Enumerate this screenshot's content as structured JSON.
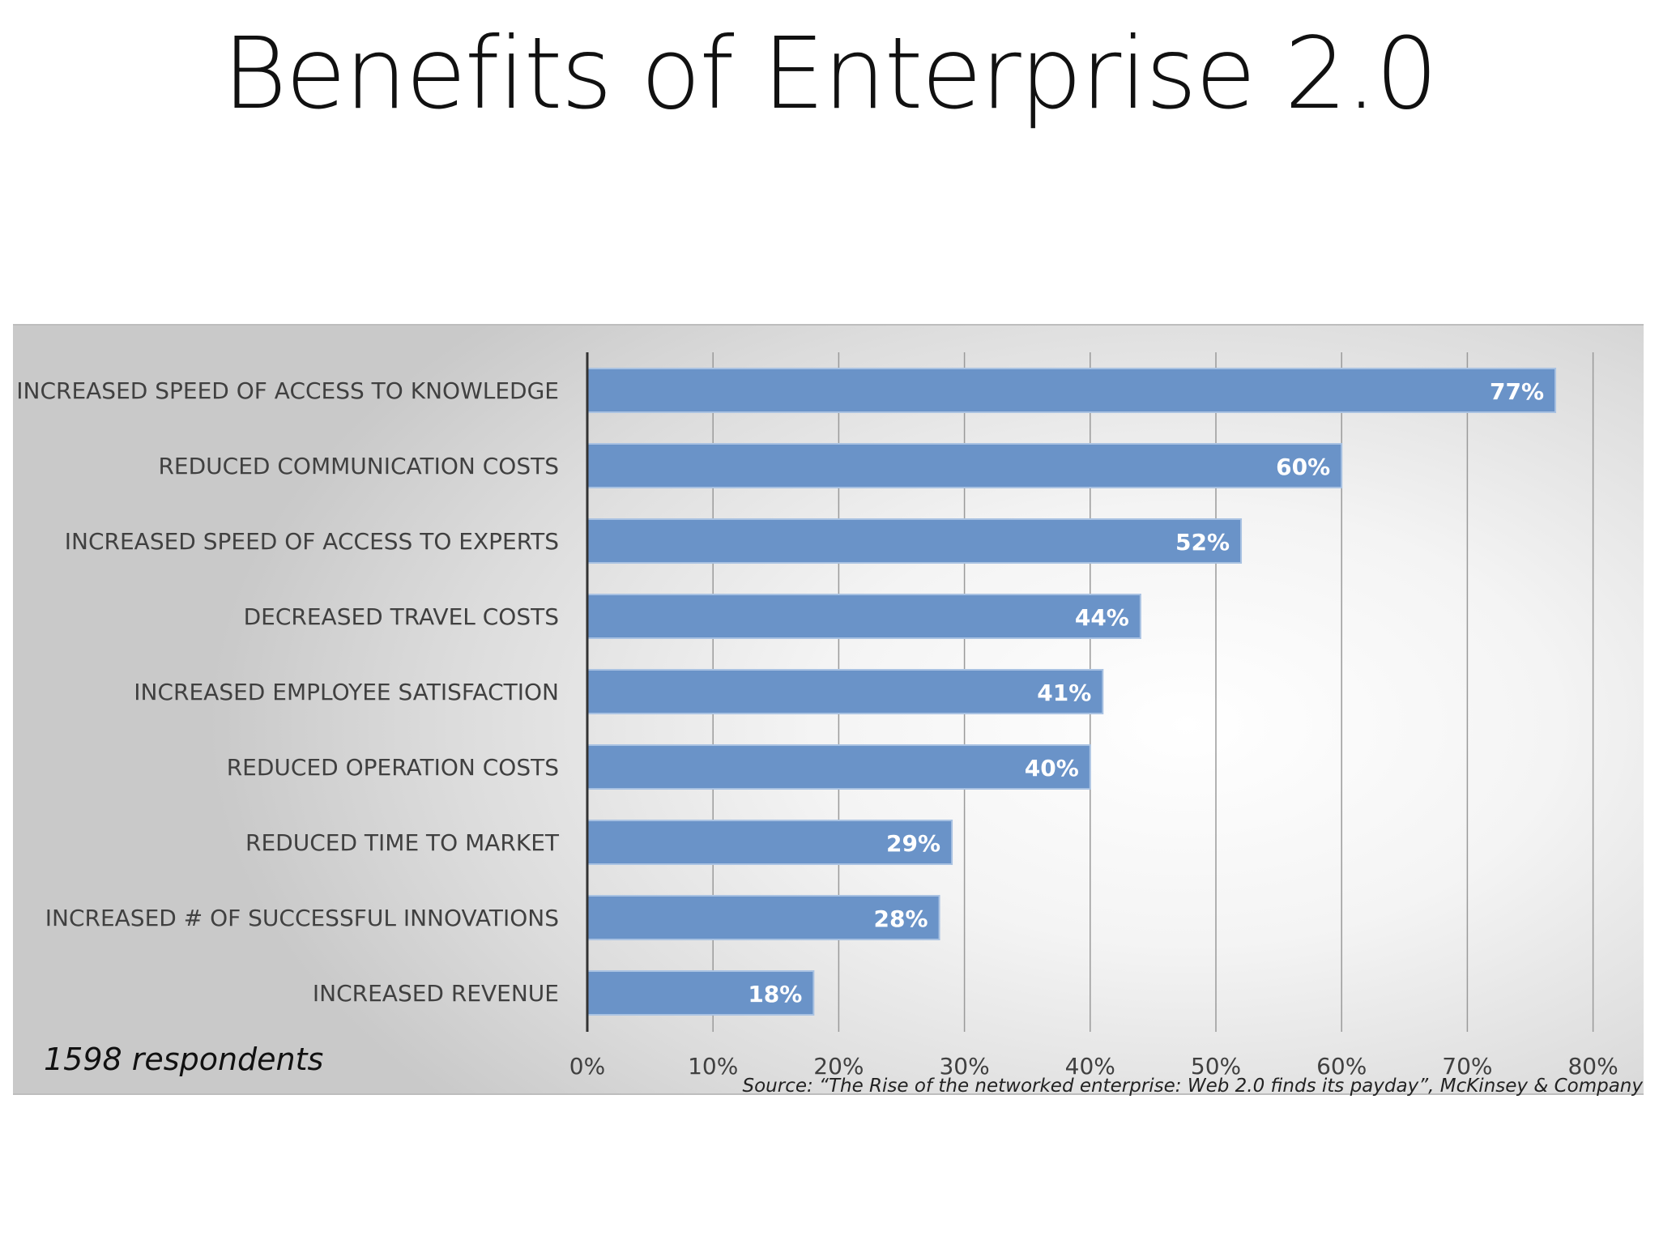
{
  "title": "Benefits of Enterprise 2.0",
  "footnote": "1598 respondents",
  "source": "Source: “The Rise of the networked enterprise: Web 2.0 finds its payday”, McKinsey & Company",
  "colors": {
    "bar": "#6a93c8",
    "bar_border": "#a9c2e2",
    "bar_label": "#ffffff",
    "category_text": "#404040",
    "tick_text": "#404040",
    "gridline": "#9a9a9a",
    "axis": "#333333"
  },
  "chart_data": {
    "type": "bar",
    "orientation": "horizontal",
    "categories": [
      "INCREASED SPEED OF ACCESS TO KNOWLEDGE",
      "REDUCED COMMUNICATION COSTS",
      "INCREASED SPEED OF ACCESS TO EXPERTS",
      "DECREASED TRAVEL COSTS",
      "INCREASED EMPLOYEE SATISFACTION",
      "REDUCED OPERATION COSTS",
      "REDUCED TIME TO MARKET",
      "INCREASED # OF SUCCESSFUL INNOVATIONS",
      "INCREASED REVENUE"
    ],
    "values": [
      77,
      60,
      52,
      44,
      41,
      40,
      29,
      28,
      18
    ],
    "data_labels": [
      "77%",
      "60%",
      "52%",
      "44%",
      "41%",
      "40%",
      "29%",
      "28%",
      "18%"
    ],
    "xlim": [
      0,
      80
    ],
    "xticks": [
      0,
      10,
      20,
      30,
      40,
      50,
      60,
      70,
      80
    ],
    "xtick_labels": [
      "0%",
      "10%",
      "20%",
      "30%",
      "40%",
      "50%",
      "60%",
      "70%",
      "80%"
    ],
    "grid": true,
    "legend": false
  }
}
